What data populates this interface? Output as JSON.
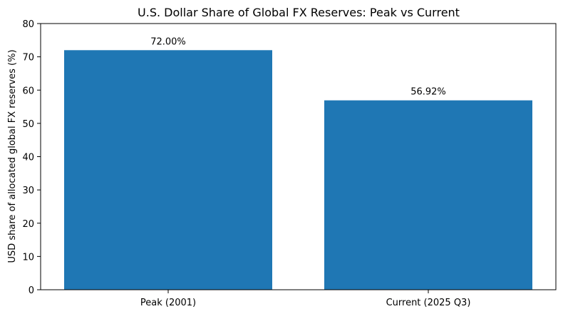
{
  "chart_data": {
    "type": "bar",
    "title": "U.S. Dollar Share of Global FX Reserves: Peak vs Current",
    "xlabel": "",
    "ylabel": "USD share of allocated global FX reserves (%)",
    "categories": [
      "Peak (2001)",
      "Current (2025 Q3)"
    ],
    "values": [
      72.0,
      56.92
    ],
    "data_labels": [
      "72.00%",
      "56.92%"
    ],
    "ylim": [
      0,
      80
    ],
    "yticks": [
      0,
      10,
      20,
      30,
      40,
      50,
      60,
      70,
      80
    ],
    "grid": false,
    "legend": "none",
    "bar_color": "#1f77b4"
  }
}
